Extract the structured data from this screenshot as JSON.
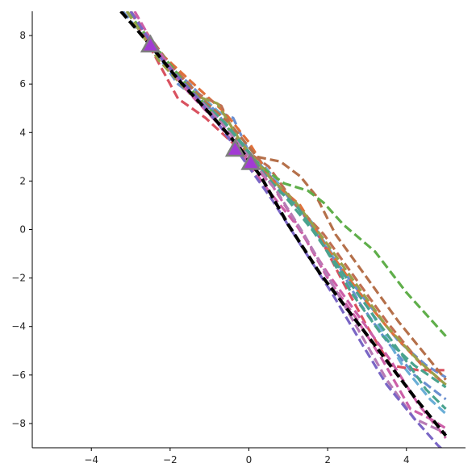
{
  "chart_data": {
    "type": "line",
    "title": "",
    "xlabel": "",
    "ylabel": "",
    "xlim": [
      -5.5,
      5.5
    ],
    "ylim": [
      -9,
      9
    ],
    "xticks": [
      -4,
      -2,
      0,
      2,
      4
    ],
    "yticks": [
      -8,
      -6,
      -4,
      -2,
      0,
      2,
      4,
      6,
      8
    ],
    "xtick_labels": [
      "−4",
      "−2",
      "0",
      "2",
      "4"
    ],
    "ytick_labels": [
      "−8",
      "−6",
      "−4",
      "−2",
      "0",
      "2",
      "4",
      "6",
      "8"
    ],
    "grid": false,
    "legend": "none",
    "spines": "left-bottom",
    "series": [
      {
        "color": "#6a8fd0",
        "style": "dashed",
        "points": [
          [
            -3.2,
            9
          ],
          [
            -2.5,
            7.6
          ],
          [
            -1.8,
            6.0
          ],
          [
            -1.0,
            5.0
          ],
          [
            -0.4,
            4.6
          ],
          [
            0,
            3.2
          ],
          [
            0.6,
            2.1
          ],
          [
            1.4,
            0.6
          ],
          [
            2.2,
            -1.3
          ],
          [
            3.0,
            -3.0
          ],
          [
            3.8,
            -4.6
          ],
          [
            4.5,
            -5.6
          ],
          [
            5.0,
            -6.1
          ]
        ]
      },
      {
        "color": "#6a8fd0",
        "style": "dashed",
        "points": [
          [
            -3.1,
            9
          ],
          [
            -2.2,
            7.0
          ],
          [
            -1.5,
            6.0
          ],
          [
            -0.8,
            4.8
          ],
          [
            -0.2,
            3.4
          ],
          [
            0.5,
            2.2
          ],
          [
            1.2,
            1.0
          ],
          [
            2.0,
            -0.7
          ],
          [
            2.8,
            -3.0
          ],
          [
            3.5,
            -4.6
          ],
          [
            4.2,
            -6.0
          ],
          [
            5.0,
            -7.0
          ]
        ]
      },
      {
        "color": "#6aaed6",
        "style": "dashed",
        "points": [
          [
            -3.0,
            9
          ],
          [
            -2.2,
            7.1
          ],
          [
            -1.4,
            5.8
          ],
          [
            -0.6,
            4.6
          ],
          [
            0.2,
            3.0
          ],
          [
            0.9,
            1.6
          ],
          [
            1.6,
            0.3
          ],
          [
            2.4,
            -1.8
          ],
          [
            3.1,
            -3.4
          ],
          [
            3.9,
            -5.6
          ],
          [
            4.6,
            -7.0
          ],
          [
            5.0,
            -7.6
          ]
        ]
      },
      {
        "color": "#d9515f",
        "style": "dashed",
        "points": [
          [
            -3.0,
            9
          ],
          [
            -2.4,
            7.2
          ],
          [
            -1.8,
            5.4
          ],
          [
            -1.1,
            4.6
          ],
          [
            -0.3,
            3.4
          ],
          [
            0.4,
            2.4
          ],
          [
            1.0,
            1.4
          ],
          [
            1.7,
            0.0
          ],
          [
            2.4,
            -2.2
          ],
          [
            3.0,
            -4.0
          ],
          [
            3.6,
            -5.6
          ],
          [
            4.3,
            -5.8
          ],
          [
            5.0,
            -5.8
          ]
        ]
      },
      {
        "color": "#e0703a",
        "style": "dashed",
        "points": [
          [
            -3.0,
            9
          ],
          [
            -2.2,
            7.2
          ],
          [
            -1.4,
            6.0
          ],
          [
            -0.6,
            4.8
          ],
          [
            0,
            3.6
          ],
          [
            0.6,
            2.0
          ],
          [
            1.3,
            1.0
          ],
          [
            2.0,
            -0.8
          ],
          [
            2.8,
            -2.6
          ],
          [
            3.6,
            -4.2
          ],
          [
            4.4,
            -5.6
          ],
          [
            5.0,
            -6.4
          ]
        ]
      },
      {
        "color": "#b5704a",
        "style": "dashed",
        "points": [
          [
            -3.0,
            9
          ],
          [
            -2.0,
            6.8
          ],
          [
            -1.2,
            5.4
          ],
          [
            -0.5,
            4.4
          ],
          [
            0.2,
            3.0
          ],
          [
            0.8,
            2.8
          ],
          [
            1.3,
            2.2
          ],
          [
            1.7,
            1.4
          ],
          [
            2.2,
            -0.2
          ],
          [
            3.0,
            -2.0
          ],
          [
            3.8,
            -3.8
          ],
          [
            4.5,
            -5.2
          ],
          [
            5.0,
            -6.2
          ]
        ]
      },
      {
        "color": "#c06f52",
        "style": "dashed",
        "points": [
          [
            -3.0,
            9
          ],
          [
            -2.1,
            7.0
          ],
          [
            -1.3,
            5.6
          ],
          [
            -0.7,
            5.1
          ],
          [
            -0.2,
            3.4
          ],
          [
            0.5,
            2.6
          ],
          [
            1.2,
            1.0
          ],
          [
            1.9,
            -0.2
          ],
          [
            2.7,
            -2.0
          ],
          [
            3.5,
            -3.8
          ],
          [
            4.3,
            -5.4
          ],
          [
            5.0,
            -6.4
          ]
        ]
      },
      {
        "color": "#5fae4a",
        "style": "dashed",
        "points": [
          [
            -3.1,
            9
          ],
          [
            -2.3,
            7.4
          ],
          [
            -1.6,
            6.0
          ],
          [
            -0.9,
            4.8
          ],
          [
            -0.3,
            3.8
          ],
          [
            0.3,
            2.6
          ],
          [
            0.9,
            1.9
          ],
          [
            1.5,
            1.6
          ],
          [
            1.9,
            1.1
          ],
          [
            2.4,
            0.2
          ],
          [
            3.2,
            -0.9
          ],
          [
            4.0,
            -2.6
          ],
          [
            5.0,
            -4.4
          ]
        ]
      },
      {
        "color": "#9aa14a",
        "style": "dashed",
        "points": [
          [
            -3.1,
            9
          ],
          [
            -2.3,
            7.0
          ],
          [
            -1.5,
            5.6
          ],
          [
            -0.8,
            5.2
          ],
          [
            -0.2,
            3.6
          ],
          [
            0.5,
            2.2
          ],
          [
            1.2,
            1.1
          ],
          [
            1.9,
            -0.4
          ],
          [
            2.7,
            -2.2
          ],
          [
            3.5,
            -4.0
          ],
          [
            4.3,
            -5.4
          ],
          [
            5.0,
            -6.4
          ]
        ]
      },
      {
        "color": "#4aa38e",
        "style": "dashed",
        "points": [
          [
            -3.0,
            9
          ],
          [
            -2.2,
            7.0
          ],
          [
            -1.4,
            5.6
          ],
          [
            -0.6,
            4.4
          ],
          [
            0,
            3.2
          ],
          [
            0.6,
            1.8
          ],
          [
            1.2,
            1.0
          ],
          [
            1.8,
            -0.4
          ],
          [
            2.6,
            -2.6
          ],
          [
            3.4,
            -4.4
          ],
          [
            4.2,
            -5.6
          ],
          [
            5.0,
            -6.5
          ]
        ]
      },
      {
        "color": "#4aa38e",
        "style": "dashed",
        "points": [
          [
            -3.0,
            9
          ],
          [
            -2.1,
            6.8
          ],
          [
            -1.3,
            5.4
          ],
          [
            -0.5,
            4.2
          ],
          [
            0.2,
            2.6
          ],
          [
            0.9,
            1.4
          ],
          [
            1.6,
            0.0
          ],
          [
            2.3,
            -1.6
          ],
          [
            3.1,
            -3.4
          ],
          [
            3.9,
            -5.2
          ],
          [
            4.5,
            -6.6
          ],
          [
            5.0,
            -7.4
          ]
        ]
      },
      {
        "color": "#cc5fa8",
        "style": "dashed",
        "points": [
          [
            -2.9,
            9
          ],
          [
            -2.2,
            7.0
          ],
          [
            -1.5,
            5.6
          ],
          [
            -0.8,
            4.4
          ],
          [
            -0.1,
            3.0
          ],
          [
            0.6,
            1.8
          ],
          [
            1.3,
            0.0
          ],
          [
            2.0,
            -2.0
          ],
          [
            2.7,
            -3.6
          ],
          [
            3.4,
            -5.4
          ],
          [
            4.1,
            -7.4
          ],
          [
            4.6,
            -7.8
          ],
          [
            5.0,
            -8.2
          ]
        ]
      },
      {
        "color": "#cc5fa8",
        "style": "dashed",
        "points": [
          [
            -3.0,
            9
          ],
          [
            -2.3,
            7.4
          ],
          [
            -1.6,
            5.8
          ],
          [
            -0.9,
            4.6
          ],
          [
            -0.2,
            3.2
          ],
          [
            0.5,
            1.6
          ],
          [
            1.2,
            0.2
          ],
          [
            2.0,
            -1.8
          ],
          [
            2.8,
            -3.6
          ],
          [
            3.6,
            -5.4
          ],
          [
            4.3,
            -7.2
          ],
          [
            5.0,
            -8.6
          ]
        ]
      },
      {
        "color": "#b77bb5",
        "style": "dashed",
        "points": [
          [
            -3.0,
            9
          ],
          [
            -2.2,
            7.0
          ],
          [
            -1.4,
            5.6
          ],
          [
            -0.7,
            4.4
          ],
          [
            0,
            3.0
          ],
          [
            0.7,
            1.6
          ],
          [
            1.4,
            -0.2
          ],
          [
            2.1,
            -2.2
          ],
          [
            2.8,
            -4.2
          ],
          [
            3.5,
            -6.2
          ],
          [
            4.2,
            -7.8
          ],
          [
            5.0,
            -8.4
          ]
        ]
      },
      {
        "color": "#7a66c5",
        "style": "dashed",
        "points": [
          [
            -3.0,
            9
          ],
          [
            -2.2,
            7.0
          ],
          [
            -1.4,
            5.6
          ],
          [
            -0.7,
            4.2
          ],
          [
            -0.1,
            2.8
          ],
          [
            0.6,
            1.2
          ],
          [
            1.3,
            -0.6
          ],
          [
            2.1,
            -2.6
          ],
          [
            2.9,
            -4.8
          ],
          [
            3.5,
            -6.4
          ],
          [
            4.2,
            -7.8
          ],
          [
            4.8,
            -8.9
          ],
          [
            5.0,
            -9.2
          ]
        ]
      },
      {
        "color": "#000000",
        "style": "dashed",
        "points": [
          [
            -3.25,
            9
          ],
          [
            -2.5,
            7.6
          ],
          [
            -1.8,
            6.2
          ],
          [
            -1.0,
            4.8
          ],
          [
            -0.3,
            3.5
          ],
          [
            0.3,
            2.2
          ],
          [
            1.0,
            0.2
          ],
          [
            1.8,
            -1.8
          ],
          [
            2.6,
            -3.5
          ],
          [
            3.4,
            -5.2
          ],
          [
            4.2,
            -6.9
          ],
          [
            5.0,
            -8.5
          ]
        ]
      }
    ],
    "markers": [
      {
        "x": -2.5,
        "y": 7.6,
        "shape": "triangle",
        "fill": "#a23bd3",
        "edge": "#7e7e7e"
      },
      {
        "x": -0.35,
        "y": 3.3,
        "shape": "triangle",
        "fill": "#a23bd3",
        "edge": "#7e7e7e"
      },
      {
        "x": 0.05,
        "y": 2.75,
        "shape": "triangle",
        "fill": "#a23bd3",
        "edge": "#7e7e7e"
      }
    ]
  }
}
